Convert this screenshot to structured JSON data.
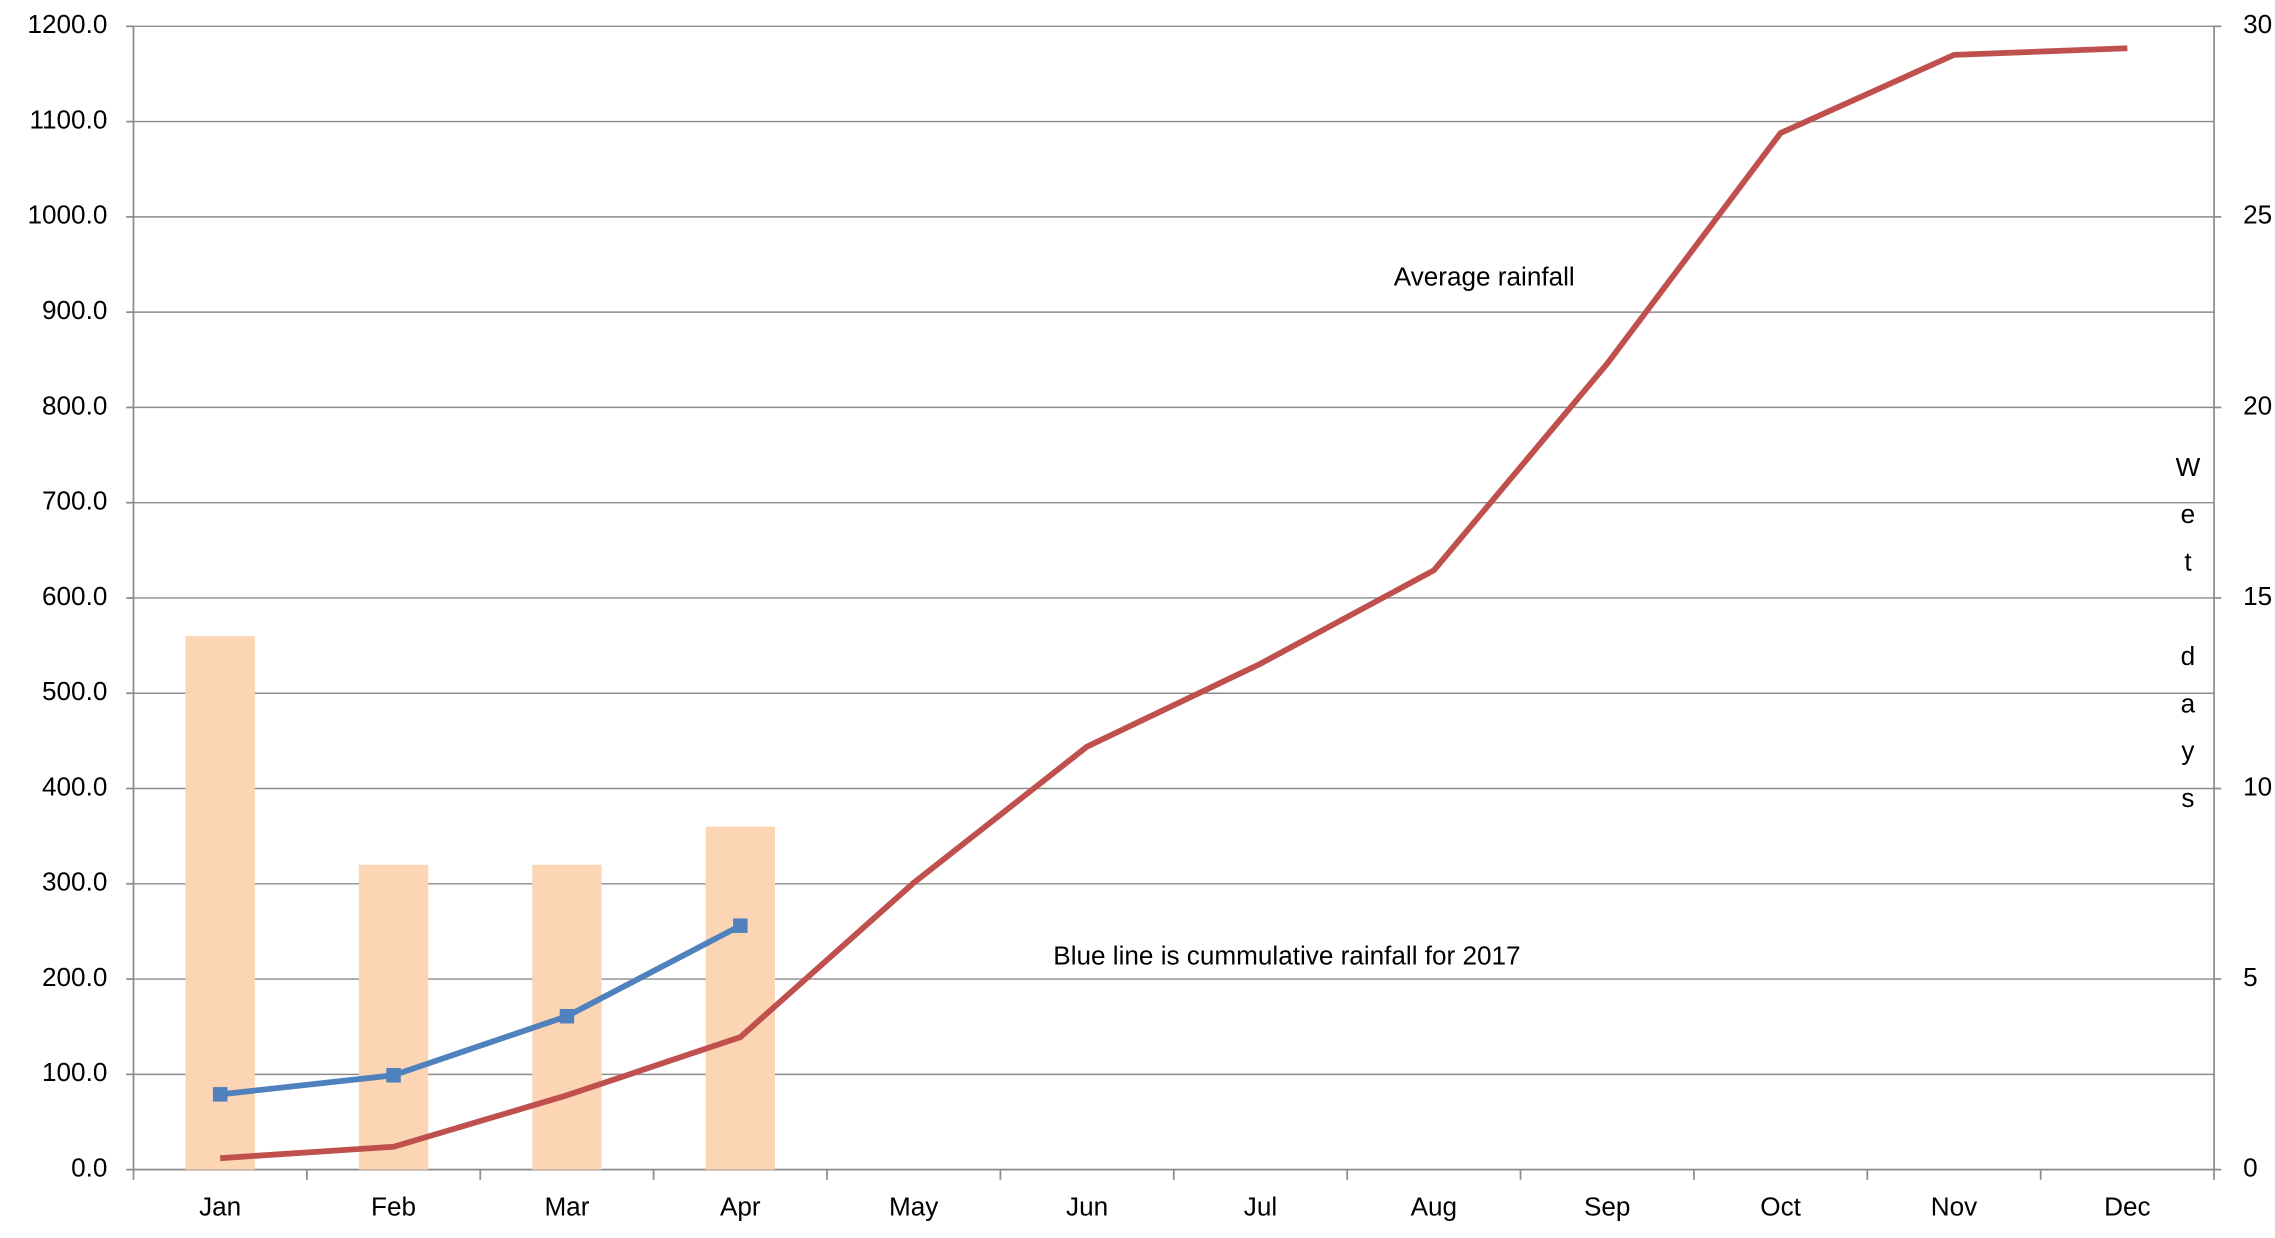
{
  "chart_data": {
    "type": "bar",
    "categories": [
      "Jan",
      "Feb",
      "Mar",
      "Apr",
      "May",
      "Jun",
      "Jul",
      "Aug",
      "Sep",
      "Oct",
      "Nov",
      "Dec"
    ],
    "series": [
      {
        "type": "bar",
        "axis": "y2",
        "color": "#fcd5b5",
        "values": [
          14,
          8,
          8,
          9,
          null,
          null,
          null,
          null,
          null,
          null,
          null,
          null
        ]
      },
      {
        "type": "line",
        "color": "#c0504d",
        "values": [
          12,
          24,
          78,
          139,
          301,
          444,
          531,
          629,
          846,
          1088,
          1170,
          1177
        ]
      },
      {
        "type": "line",
        "color": "#4f81bd",
        "marker": "square",
        "values": [
          79,
          99,
          161,
          256,
          null,
          null,
          null,
          null,
          null,
          null,
          null,
          null
        ]
      }
    ],
    "ylim": [
      0,
      1200
    ],
    "yticks": [
      {
        "value": 0,
        "label": "0.0"
      },
      {
        "value": 100,
        "label": "100.0"
      },
      {
        "value": 200,
        "label": "200.0"
      },
      {
        "value": 300,
        "label": "300.0"
      },
      {
        "value": 400,
        "label": "400.0"
      },
      {
        "value": 500,
        "label": "500.0"
      },
      {
        "value": 600,
        "label": "600.0"
      },
      {
        "value": 700,
        "label": "700.0"
      },
      {
        "value": 800,
        "label": "800.0"
      },
      {
        "value": 900,
        "label": "900.0"
      },
      {
        "value": 1000,
        "label": "1000.0"
      },
      {
        "value": 1100,
        "label": "1100.0"
      },
      {
        "value": 1200,
        "label": "1200.0"
      }
    ],
    "y2lim": [
      0,
      30
    ],
    "y2ticks": [
      0,
      5,
      10,
      15,
      20,
      25,
      30
    ],
    "y2label": "Wet days",
    "annotations": [
      "Average rainfall",
      "Blue line is cummulative rainfall for 2017"
    ],
    "grid": true
  }
}
